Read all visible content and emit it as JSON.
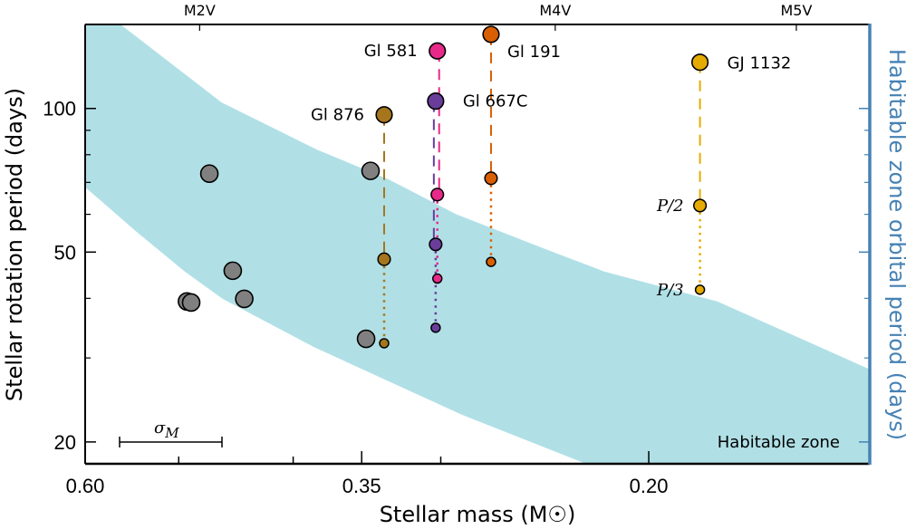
{
  "chart_data": {
    "type": "scatter",
    "xlabel": "Stellar mass (M☉)",
    "ylabel": "Stellar rotation period (days)",
    "ylabel_right": "Habitable zone orbital period (days)",
    "xscale": "log",
    "x_reversed": true,
    "xlim": [
      0.6,
      0.13
    ],
    "yscale": "log",
    "ylim": [
      18,
      150
    ],
    "xticks": [
      {
        "value": 0.6,
        "label": "0.60"
      },
      {
        "value": 0.35,
        "label": "0.35"
      },
      {
        "value": 0.2,
        "label": "0.20"
      }
    ],
    "xticks_minor": [
      0.5,
      0.4,
      0.3
    ],
    "yticks": [
      {
        "value": 100,
        "label": "100"
      },
      {
        "value": 50,
        "label": "50"
      },
      {
        "value": 20,
        "label": "20"
      }
    ],
    "yticks_minor": [
      30,
      40,
      60,
      70,
      80,
      90
    ],
    "top_axis": [
      {
        "value": 0.48,
        "label": "M2V"
      },
      {
        "value": 0.24,
        "label": "M4V"
      },
      {
        "value": 0.15,
        "label": "M5V"
      }
    ],
    "grid": false,
    "colors": {
      "band": "#b0e0e6",
      "right_axis": "#4682b4",
      "gray_star": "#808080"
    },
    "habitable_zone": {
      "label": "Habitable zone",
      "upper": [
        [
          0.6,
          175
        ],
        [
          0.56,
          150
        ],
        [
          0.46,
          103
        ],
        [
          0.382,
          82
        ],
        [
          0.332,
          71
        ],
        [
          0.291,
          60
        ],
        [
          0.246,
          51
        ],
        [
          0.218,
          45.5
        ],
        [
          0.175,
          39.4
        ],
        [
          0.144,
          31.8
        ],
        [
          0.13,
          28.4
        ]
      ],
      "lower": [
        [
          0.6,
          68.4
        ],
        [
          0.544,
          55.4
        ],
        [
          0.494,
          45.5
        ],
        [
          0.459,
          39.9
        ],
        [
          0.384,
          31.6
        ],
        [
          0.289,
          22.9
        ],
        [
          0.226,
          18.0
        ],
        [
          0.13,
          12
        ]
      ]
    },
    "gray_stars": [
      {
        "mass": 0.471,
        "period": 73
      },
      {
        "mass": 0.45,
        "period": 45.7
      },
      {
        "mass": 0.44,
        "period": 39.9
      },
      {
        "mass": 0.492,
        "period": 39.4
      },
      {
        "mass": 0.488,
        "period": 39.2
      },
      {
        "mass": 0.344,
        "period": 74
      },
      {
        "mass": 0.347,
        "period": 32.9
      }
    ],
    "planet_hosts": [
      {
        "name": "Gl 876",
        "color": "#a6761d",
        "mass": 0.335,
        "period": 97,
        "p2": 48.3,
        "p3": 32.2
      },
      {
        "name": "Gl 581",
        "color": "#e7298a",
        "mass": 0.302,
        "period": 132,
        "p2": 66,
        "p3": 44
      },
      {
        "name": "Gl 667C",
        "color": "#6a3d9a",
        "mass": 0.303,
        "period": 103.6,
        "p2": 51.9,
        "p3": 34.7
      },
      {
        "name": "Gl 191",
        "color": "#d95f02",
        "mass": 0.272,
        "period": 143,
        "p2": 71.4,
        "p3": 47.7
      },
      {
        "name": "GJ 1132",
        "color": "#e6ab02",
        "mass": 0.181,
        "period": 125,
        "p2": 62.6,
        "p3": 41.7
      }
    ],
    "fraction_labels": {
      "p2": "P/2",
      "p3": "P/3"
    },
    "sigma_label": "σ",
    "sigma_sub": "M"
  }
}
